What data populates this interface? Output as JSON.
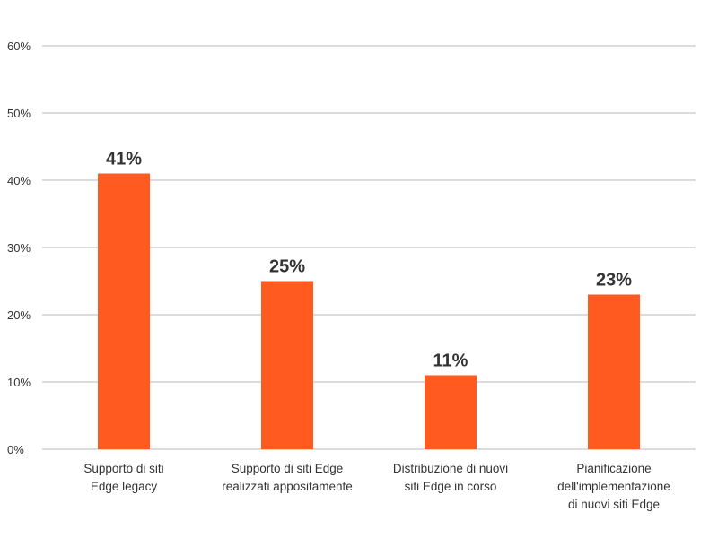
{
  "chart_data": {
    "type": "bar",
    "title": "",
    "xlabel": "",
    "ylabel": "",
    "ylim": [
      0,
      60
    ],
    "yticks": [
      "0%",
      "10%",
      "20%",
      "30%",
      "40%",
      "50%",
      "60%"
    ],
    "ytick_values": [
      0,
      10,
      20,
      30,
      40,
      50,
      60
    ],
    "grid": true,
    "categories": [
      [
        "Supporto di siti",
        "Edge legacy"
      ],
      [
        "Supporto di siti Edge",
        "realizzati appositamente"
      ],
      [
        "Distribuzione di nuovi",
        "siti Edge in corso"
      ],
      [
        "Pianificazione",
        "dell'implementazione",
        "di nuovi siti Edge"
      ]
    ],
    "values": [
      41,
      25,
      11,
      23
    ],
    "data_labels": [
      "41%",
      "25%",
      "11%",
      "23%"
    ],
    "colors": {
      "bar": "#FF5A1F",
      "grid": "#D0D0D0",
      "text": "#333333"
    }
  }
}
